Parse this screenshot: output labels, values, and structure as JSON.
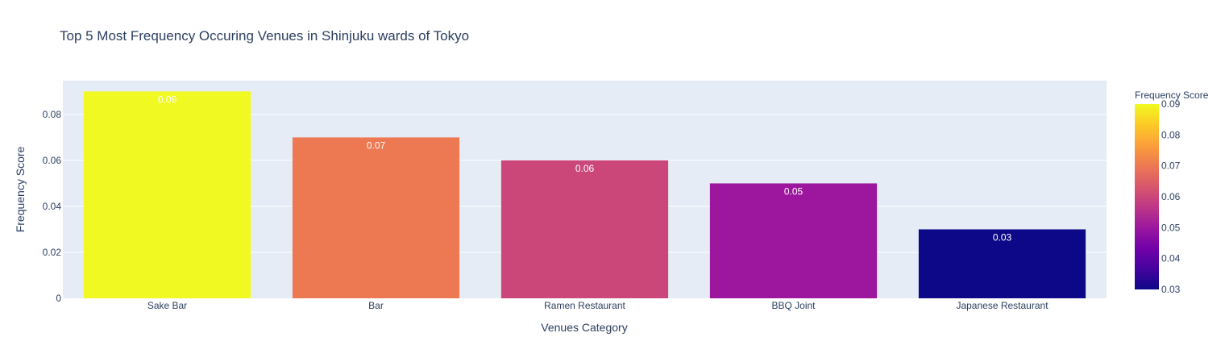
{
  "chart_data": {
    "type": "bar",
    "title": "Top 5 Most Frequency Occuring Venues in Shinjuku wards of Tokyo",
    "xlabel": "Venues Category",
    "ylabel": "Frequency Score",
    "categories": [
      "Sake Bar",
      "Bar",
      "Ramen Restaurant",
      "BBQ Joint",
      "Japanese Restaurant"
    ],
    "values": [
      0.09,
      0.07,
      0.06,
      0.05,
      0.03
    ],
    "data_labels": [
      "0.09",
      "0.07",
      "0.06",
      "0.05",
      "0.03"
    ],
    "ylim": [
      0,
      0.0947
    ],
    "yticks": [
      0,
      0.02,
      0.04,
      0.06,
      0.08
    ],
    "ytick_labels": [
      "0",
      "0.02",
      "0.04",
      "0.06",
      "0.08"
    ],
    "grid": true,
    "legend": "none",
    "colorbar": {
      "title": "Frequency Score",
      "range": [
        0.03,
        0.09
      ],
      "ticks": [
        0.03,
        0.04,
        0.05,
        0.06,
        0.07,
        0.08,
        0.09
      ],
      "tick_labels": [
        "0.03",
        "0.04",
        "0.05",
        "0.06",
        "0.07",
        "0.08",
        "0.09"
      ],
      "placement": "right"
    },
    "colors": {
      "plot_bg": "#e5ecf6",
      "grid": "#ffffff",
      "text": "#2a3f5f",
      "colorscale": [
        "#0d0887",
        "#46039f",
        "#7201a8",
        "#9c179e",
        "#bd3786",
        "#d8576b",
        "#ed7953",
        "#fb9f3a",
        "#fdca26",
        "#f0f921"
      ]
    }
  }
}
